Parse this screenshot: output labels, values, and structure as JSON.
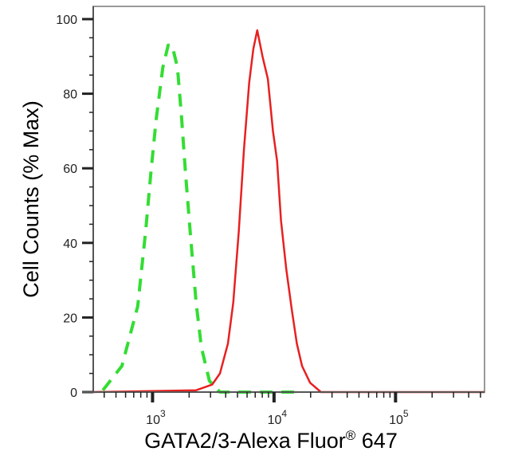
{
  "chart_data": {
    "type": "line",
    "title": "",
    "xlabel": "GATA2/3-Alexa Fluor",
    "xlabel_sup": "®",
    "xlabel_suffix": " 647",
    "ylabel": "Cell Counts (% Max)",
    "x_scale": "log",
    "xlim": [
      325,
      540000
    ],
    "ylim": [
      0,
      100
    ],
    "grid": false,
    "y_ticks": [
      0,
      20,
      40,
      60,
      80,
      100
    ],
    "y_tick_labels": [
      "0",
      "20",
      "40",
      "60",
      "80",
      "100"
    ],
    "x_ticks": [
      1000,
      10000,
      100000
    ],
    "x_tick_labels": [
      {
        "base": "10",
        "exp": "3"
      },
      {
        "base": "10",
        "exp": "4"
      },
      {
        "base": "10",
        "exp": "5"
      }
    ],
    "series": [
      {
        "style": "dashed",
        "color": "#33dd33",
        "x": [
          390,
          560,
          755,
          877,
          970,
          1070,
          1215,
          1345,
          1450,
          1605,
          1730,
          1865,
          2065,
          2285,
          2525,
          2940,
          3590,
          16000
        ],
        "y": [
          0.5,
          7,
          23,
          43,
          59,
          73,
          87,
          93,
          93,
          87,
          74,
          59,
          41,
          24,
          12,
          3,
          0,
          0
        ]
      },
      {
        "style": "solid",
        "color": "#e82020",
        "x": [
          325,
          2285,
          3095,
          3590,
          4170,
          4620,
          5120,
          5650,
          6240,
          6750,
          7270,
          8030,
          8890,
          9800,
          10600,
          11400,
          12600,
          14000,
          15400,
          17000,
          19800,
          24300,
          540000
        ],
        "y": [
          0,
          0.5,
          2,
          5,
          13,
          24,
          43,
          65,
          83,
          92,
          97,
          90,
          84,
          70,
          62,
          46,
          33,
          22,
          13,
          7,
          2.5,
          0,
          0
        ]
      }
    ]
  }
}
